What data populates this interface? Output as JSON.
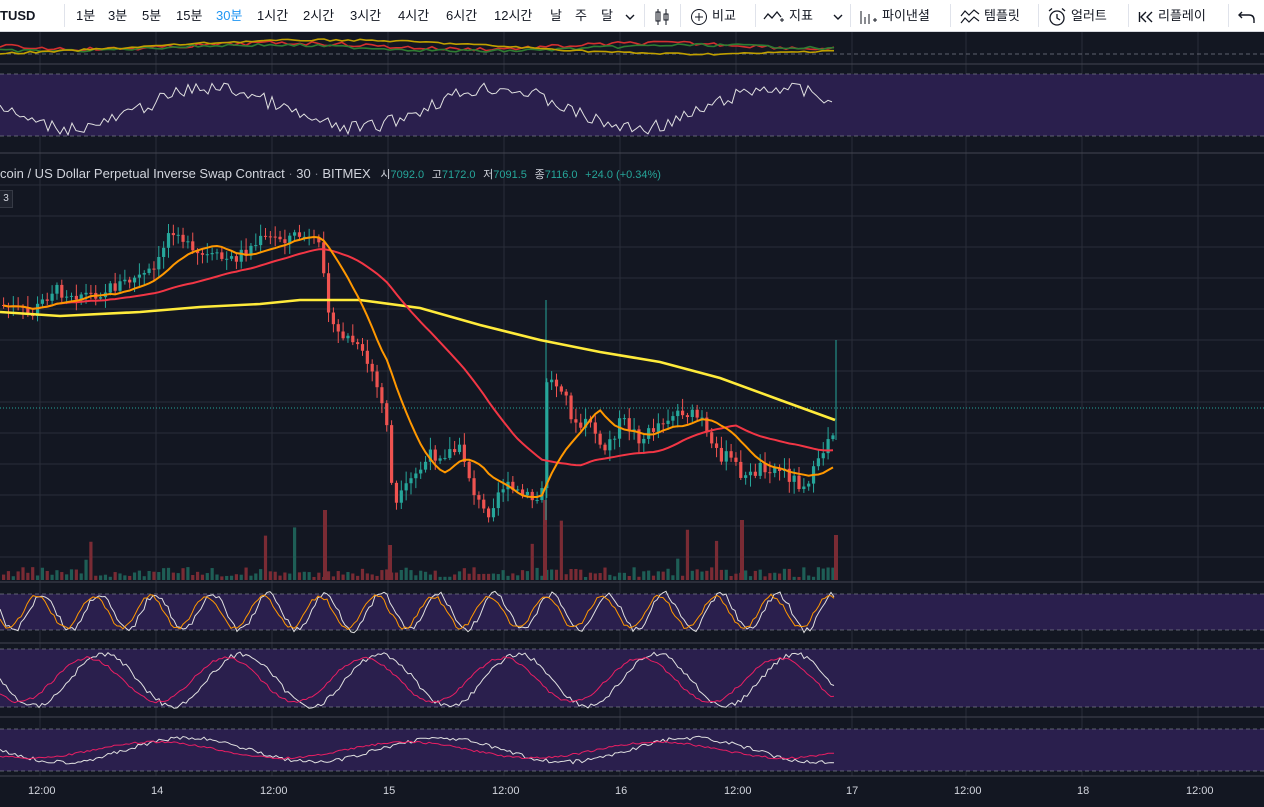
{
  "toolbar": {
    "symbol": "TUSD",
    "intervals": [
      "1분",
      "3분",
      "5분",
      "15분",
      "30분",
      "1시간",
      "2시간",
      "3시간",
      "4시간",
      "6시간",
      "12시간",
      "날",
      "주",
      "달"
    ],
    "active_interval": "30분",
    "compare_label": "비교",
    "indicators_label": "지표",
    "pinescript_label": "파이낸셜",
    "templates_label": "템플릿",
    "alert_label": "얼러트",
    "replay_label": "리플레이"
  },
  "legend": {
    "title": "coin / US Dollar Perpetual Inverse Swap Contract",
    "interval": "30",
    "exchange": "BITMEX",
    "open_label": "시",
    "open_value": "7092.0",
    "high_label": "고",
    "high_value": "7172.0",
    "low_label": "저",
    "low_value": "7091.5",
    "close_label": "종",
    "close_value": "7116.0",
    "change": "+24.0 (+0.34%)",
    "badge": "3"
  },
  "time_axis": {
    "labels": [
      "12:00",
      "14",
      "12:00",
      "15",
      "12:00",
      "16",
      "12:00",
      "17",
      "12:00",
      "18",
      "12:00"
    ]
  },
  "colors": {
    "background": "#131722",
    "up": "#26a69a",
    "down": "#ef5350",
    "ma_fast": "#ff9800",
    "ma_mid": "#f23645",
    "ma_slow": "#ffeb3b",
    "osc_band": "#2a1f4d",
    "accent": "#2196f3"
  }
}
